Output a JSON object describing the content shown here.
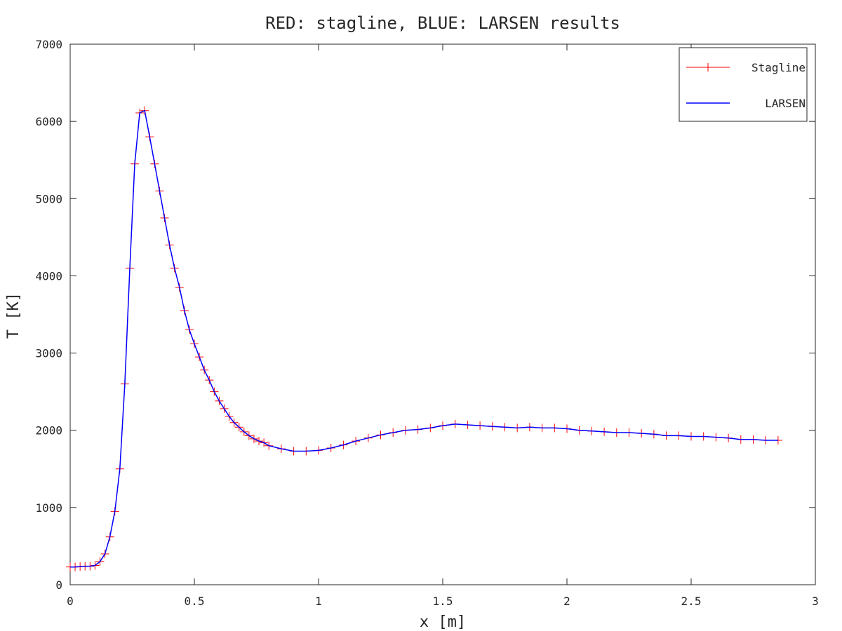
{
  "chart_data": {
    "type": "line",
    "title": "RED: stagline, BLUE: LARSEN results",
    "xlabel": "x [m]",
    "ylabel": "T [K]",
    "xlim": [
      0,
      3
    ],
    "ylim": [
      0,
      7000
    ],
    "xticks": [
      "0",
      "0.5",
      "1",
      "1.5",
      "2",
      "2.5",
      "3"
    ],
    "yticks": [
      "0",
      "1000",
      "2000",
      "3000",
      "4000",
      "5000",
      "6000",
      "7000"
    ],
    "grid": false,
    "legend_position": "top-right",
    "series": [
      {
        "name": "Stagline",
        "color": "#ff0000",
        "marker": "plus",
        "x": [
          0.0,
          0.02,
          0.04,
          0.06,
          0.08,
          0.1,
          0.12,
          0.14,
          0.16,
          0.18,
          0.2,
          0.22,
          0.24,
          0.26,
          0.28,
          0.3,
          0.32,
          0.34,
          0.36,
          0.38,
          0.4,
          0.42,
          0.44,
          0.46,
          0.48,
          0.5,
          0.52,
          0.54,
          0.56,
          0.58,
          0.6,
          0.62,
          0.64,
          0.66,
          0.68,
          0.7,
          0.72,
          0.74,
          0.76,
          0.78,
          0.8,
          0.85,
          0.9,
          0.95,
          1.0,
          1.05,
          1.1,
          1.15,
          1.2,
          1.25,
          1.3,
          1.35,
          1.4,
          1.45,
          1.5,
          1.55,
          1.6,
          1.65,
          1.7,
          1.75,
          1.8,
          1.85,
          1.9,
          1.95,
          2.0,
          2.05,
          2.1,
          2.15,
          2.2,
          2.25,
          2.3,
          2.35,
          2.4,
          2.45,
          2.5,
          2.55,
          2.6,
          2.65,
          2.7,
          2.75,
          2.8,
          2.85
        ],
        "y": [
          230,
          230,
          235,
          240,
          240,
          250,
          300,
          400,
          620,
          950,
          1500,
          2600,
          4100,
          5450,
          6110,
          6140,
          5800,
          5450,
          5100,
          4750,
          4400,
          4100,
          3850,
          3550,
          3300,
          3120,
          2950,
          2780,
          2650,
          2500,
          2380,
          2280,
          2180,
          2100,
          2040,
          1980,
          1930,
          1890,
          1860,
          1840,
          1800,
          1760,
          1730,
          1730,
          1740,
          1770,
          1810,
          1860,
          1900,
          1940,
          1970,
          2000,
          2010,
          2030,
          2060,
          2080,
          2070,
          2060,
          2050,
          2040,
          2030,
          2040,
          2030,
          2030,
          2020,
          2000,
          1990,
          1980,
          1970,
          1970,
          1960,
          1950,
          1930,
          1930,
          1920,
          1920,
          1910,
          1900,
          1880,
          1880,
          1870,
          1870
        ]
      },
      {
        "name": "LARSEN",
        "color": "#0000ff",
        "marker": "none",
        "x": [
          0.0,
          0.02,
          0.04,
          0.06,
          0.08,
          0.1,
          0.12,
          0.14,
          0.16,
          0.18,
          0.2,
          0.22,
          0.24,
          0.26,
          0.28,
          0.3,
          0.32,
          0.34,
          0.36,
          0.38,
          0.4,
          0.42,
          0.44,
          0.46,
          0.48,
          0.5,
          0.52,
          0.54,
          0.56,
          0.58,
          0.6,
          0.62,
          0.64,
          0.66,
          0.68,
          0.7,
          0.72,
          0.74,
          0.76,
          0.78,
          0.8,
          0.85,
          0.9,
          0.95,
          1.0,
          1.05,
          1.1,
          1.15,
          1.2,
          1.25,
          1.3,
          1.35,
          1.4,
          1.45,
          1.5,
          1.55,
          1.6,
          1.65,
          1.7,
          1.75,
          1.8,
          1.85,
          1.9,
          1.95,
          2.0,
          2.05,
          2.1,
          2.15,
          2.2,
          2.25,
          2.3,
          2.35,
          2.4,
          2.45,
          2.5,
          2.55,
          2.6,
          2.65,
          2.7,
          2.75,
          2.8,
          2.85
        ],
        "y": [
          230,
          230,
          235,
          240,
          240,
          250,
          300,
          400,
          620,
          950,
          1500,
          2600,
          4100,
          5450,
          6110,
          6140,
          5800,
          5450,
          5100,
          4750,
          4400,
          4100,
          3850,
          3550,
          3300,
          3120,
          2950,
          2780,
          2650,
          2500,
          2380,
          2280,
          2180,
          2100,
          2040,
          1980,
          1930,
          1890,
          1860,
          1840,
          1800,
          1760,
          1730,
          1730,
          1740,
          1770,
          1810,
          1860,
          1900,
          1940,
          1970,
          2000,
          2010,
          2030,
          2060,
          2080,
          2070,
          2060,
          2050,
          2040,
          2030,
          2040,
          2030,
          2030,
          2020,
          2000,
          1990,
          1980,
          1970,
          1970,
          1960,
          1950,
          1930,
          1930,
          1920,
          1920,
          1910,
          1900,
          1880,
          1880,
          1870,
          1870
        ]
      }
    ]
  }
}
